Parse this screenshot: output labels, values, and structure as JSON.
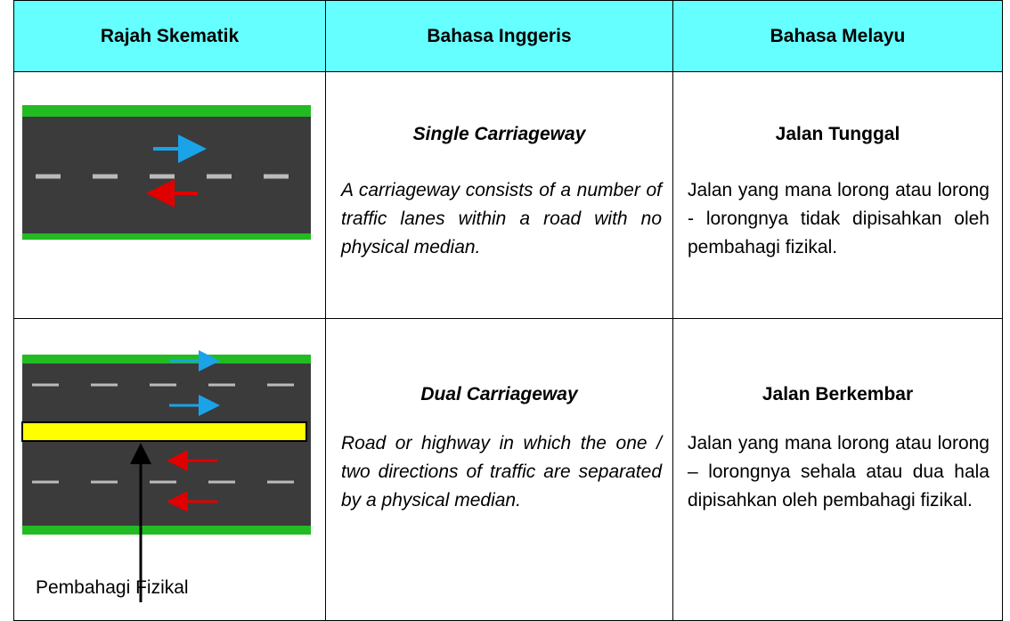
{
  "table": {
    "header": [
      "Rajah Skematik",
      "Bahasa Inggeris",
      "Bahasa Melayu"
    ],
    "rows": [
      {
        "english_title": "Single Carriageway",
        "english_text": "A carriageway consists of a number of traffic lanes within a road with no physical median.",
        "malay_title": "Jalan Tunggal",
        "malay_text": "Jalan yang mana lorong atau lorong - lorongnya tidak dipisahkan oleh pembahagi fizikal."
      },
      {
        "diagram_label": "Pembahagi Fizikal",
        "english_title": "Dual Carriageway",
        "english_text": "Road or highway in which the one / two directions of traffic are separated by a physical median.",
        "malay_title": "Jalan Berkembar",
        "malay_text": "Jalan yang mana lorong atau lorong – lorongnya sehala atau dua hala dipisahkan oleh pembahagi fizikal."
      }
    ]
  }
}
